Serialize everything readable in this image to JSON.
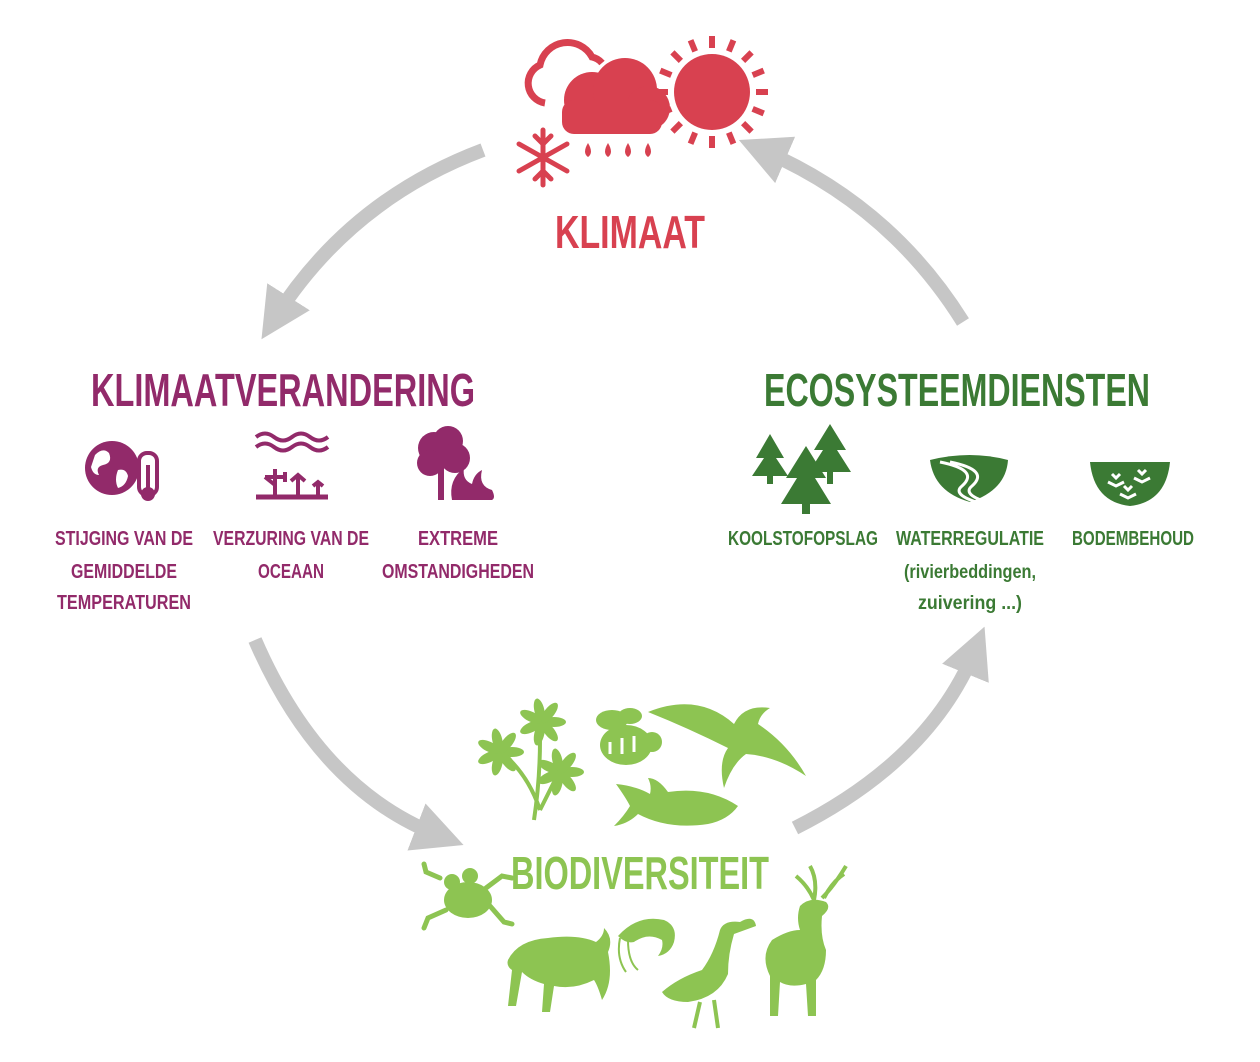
{
  "colors": {
    "klimaat": "#d84150",
    "verandering": "#922a6a",
    "ecosystemen": "#3b7a34",
    "biodiversiteit": "#8dc452",
    "arrow": "#c6c6c6"
  },
  "nodes": {
    "klimaat": {
      "title": "KLIMAAT",
      "icons": [
        "cloud-icon",
        "rain-cloud-icon",
        "sun-icon",
        "snowflake-icon"
      ]
    },
    "klimaatverandering": {
      "title": "KLIMAATVERANDERING",
      "items": [
        {
          "icon": "globe-thermometer-icon",
          "line1": "STIJGING VAN DE",
          "line2": "GEMIDDELDE",
          "line3": "TEMPERATUREN"
        },
        {
          "icon": "coral-waves-icon",
          "line1": "VERZURING VAN DE",
          "line2": "OCEAAN"
        },
        {
          "icon": "tree-fire-icon",
          "line1": "EXTREME",
          "line2": "OMSTANDIGHEDEN"
        }
      ]
    },
    "ecosysteemdiensten": {
      "title": "ECOSYSTEEMDIENSTEN",
      "items": [
        {
          "icon": "pine-trees-icon",
          "line1": "KOOLSTOFOPSLAG"
        },
        {
          "icon": "river-icon",
          "line1": "WATERREGULATIE",
          "line2": "(rivierbeddingen,",
          "line3": "zuivering ...)"
        },
        {
          "icon": "soil-plants-icon",
          "line1": "BODEMBEHOUD"
        }
      ]
    },
    "biodiversiteit": {
      "title": "BIODIVERSITEIT",
      "icons": [
        "plant-icon",
        "bee-icon",
        "bird-icon",
        "fish-icon",
        "frog-icon",
        "wolf-icon",
        "shrimp-icon",
        "crane-icon",
        "deer-icon"
      ]
    }
  }
}
